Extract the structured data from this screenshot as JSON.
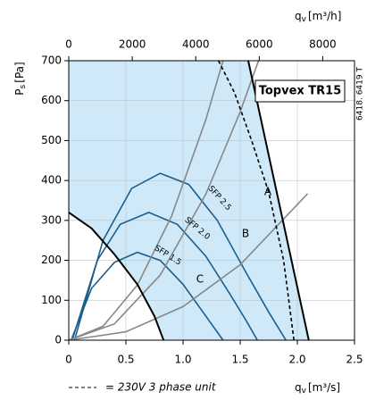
{
  "chart_data": {
    "type": "line",
    "title": "Topvex TR15",
    "code": "6418. 6419 T",
    "xlabel": {
      "main": "q",
      "sub": "v",
      "unit": "[m³/s]"
    },
    "x2label": {
      "main": "q",
      "sub": "v",
      "unit": "[m³/h]"
    },
    "ylabel": {
      "main": "P",
      "sub": "s",
      "unit": "[Pa]"
    },
    "xlim": [
      0,
      2.5
    ],
    "xticks": [
      0,
      0.5,
      {
        "value": 1.0,
        "label": "1.0"
      },
      1.5,
      {
        "value": 2.0,
        "label": "2.0"
      },
      2.5
    ],
    "x2lim": [
      0,
      9000
    ],
    "x2ticks": [
      0,
      2000,
      4000,
      6000,
      8000
    ],
    "ylim": [
      0,
      700
    ],
    "yticks": [
      0,
      100,
      200,
      300,
      400,
      500,
      600,
      700
    ],
    "grid": true,
    "area_color": "#cfe9f8",
    "annotations": [
      "A",
      "B",
      "C"
    ],
    "boundary": [
      {
        "color": "#000000",
        "x": [
          0,
          0.2,
          0.4,
          0.6,
          0.75,
          0.83
        ],
        "values": [
          320,
          280,
          215,
          140,
          60,
          0
        ]
      },
      {
        "color": "#000000",
        "x": [
          1.57,
          2.1
        ],
        "values": [
          700,
          0
        ]
      }
    ],
    "series": [
      {
        "name": "SFP 2.5",
        "color": "#1c5d8c",
        "x": [
          0.05,
          0.3,
          0.55,
          0.8,
          1.05,
          1.3,
          1.55,
          1.75,
          1.9
        ],
        "values": [
          0,
          250,
          380,
          418,
          390,
          300,
          170,
          70,
          0
        ]
      },
      {
        "name": "SFP 2.0",
        "color": "#1c5d8c",
        "x": [
          0.03,
          0.25,
          0.45,
          0.7,
          0.95,
          1.2,
          1.4,
          1.55,
          1.65
        ],
        "values": [
          0,
          200,
          290,
          320,
          290,
          210,
          120,
          50,
          0
        ]
      },
      {
        "name": "SFP 1.5",
        "color": "#1c5d8c",
        "x": [
          0.02,
          0.2,
          0.4,
          0.6,
          0.8,
          1.0,
          1.2,
          1.35
        ],
        "values": [
          0,
          130,
          195,
          220,
          200,
          140,
          60,
          0
        ]
      },
      {
        "color": "#888888",
        "x": [
          0,
          0.3,
          0.6,
          0.9,
          1.2,
          1.35
        ],
        "values": [
          0,
          35,
          138,
          311,
          553,
          700
        ]
      },
      {
        "color": "#888888",
        "x": [
          0,
          0.4,
          0.8,
          1.2,
          1.5,
          1.66
        ],
        "values": [
          0,
          41,
          163,
          366,
          572,
          700
        ]
      },
      {
        "color": "#888888",
        "x": [
          0,
          0.5,
          1,
          1.5,
          2.09
        ],
        "values": [
          0,
          21,
          84,
          189,
          367
        ]
      },
      {
        "name": "= 230V 3 phase unit",
        "color": "#000000",
        "dashed": true,
        "x": [
          1.31,
          1.45,
          1.6,
          1.75,
          1.88,
          1.97
        ],
        "values": [
          700,
          620,
          500,
          370,
          200,
          0
        ]
      }
    ]
  }
}
